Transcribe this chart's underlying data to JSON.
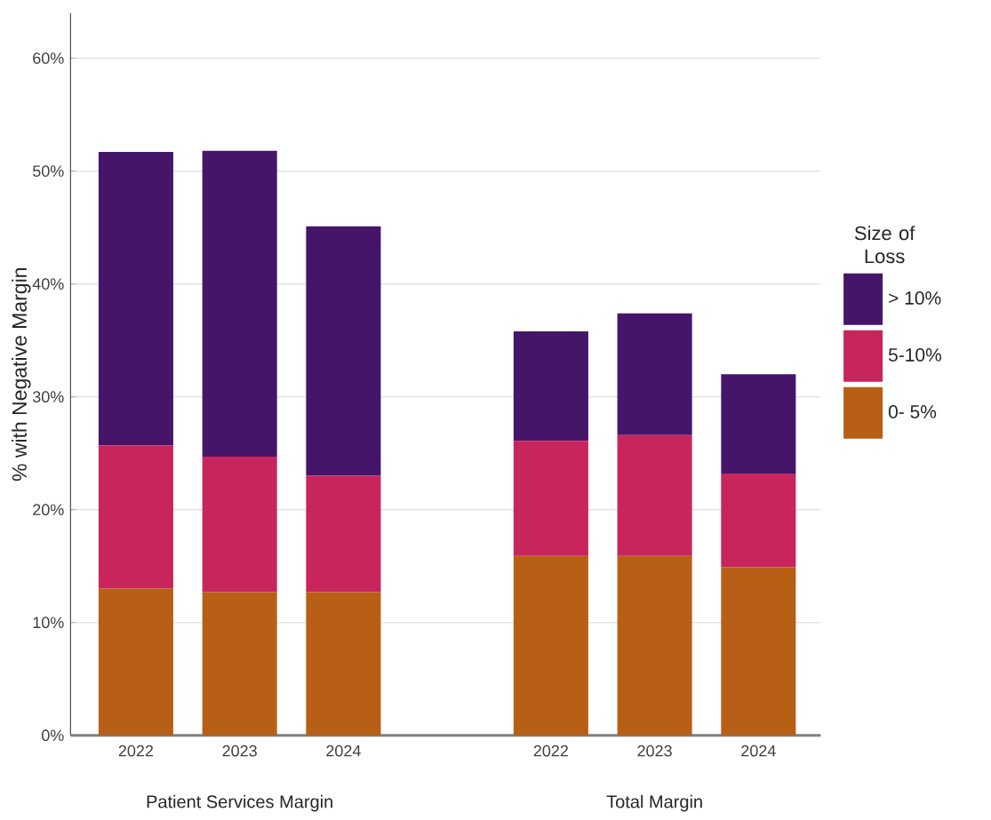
{
  "chart_data": {
    "type": "bar",
    "stacked": true,
    "ylabel": "% with Negative Margin",
    "legend_title": "Size of Loss",
    "categories": [
      "2022",
      "2023",
      "2024",
      null,
      "2022",
      "2023",
      "2024"
    ],
    "annotations": [
      "Patient Services Margin",
      "Total Margin"
    ],
    "series": [
      {
        "name": "0- 5%",
        "color": "#b85f16",
        "values": [
          13.0,
          12.7,
          12.7,
          null,
          15.9,
          15.9,
          14.9
        ]
      },
      {
        "name": "5-10%",
        "color": "#c8255d",
        "values": [
          12.7,
          12.0,
          10.3,
          null,
          10.2,
          10.7,
          8.3
        ]
      },
      {
        "name": "> 10%",
        "color": "#45156a",
        "values": [
          26.0,
          27.1,
          22.1,
          null,
          9.7,
          10.8,
          8.8
        ]
      }
    ],
    "ylim": [
      0,
      64
    ],
    "yticks": [
      {
        "value": 0,
        "label": "0%"
      },
      {
        "value": 10,
        "label": "10%"
      },
      {
        "value": 20,
        "label": "20%"
      },
      {
        "value": 30,
        "label": "30%"
      },
      {
        "value": 40,
        "label": "40%"
      },
      {
        "value": 50,
        "label": "50%"
      },
      {
        "value": 60,
        "label": "60%"
      }
    ],
    "grid": "y",
    "legend": "right"
  }
}
